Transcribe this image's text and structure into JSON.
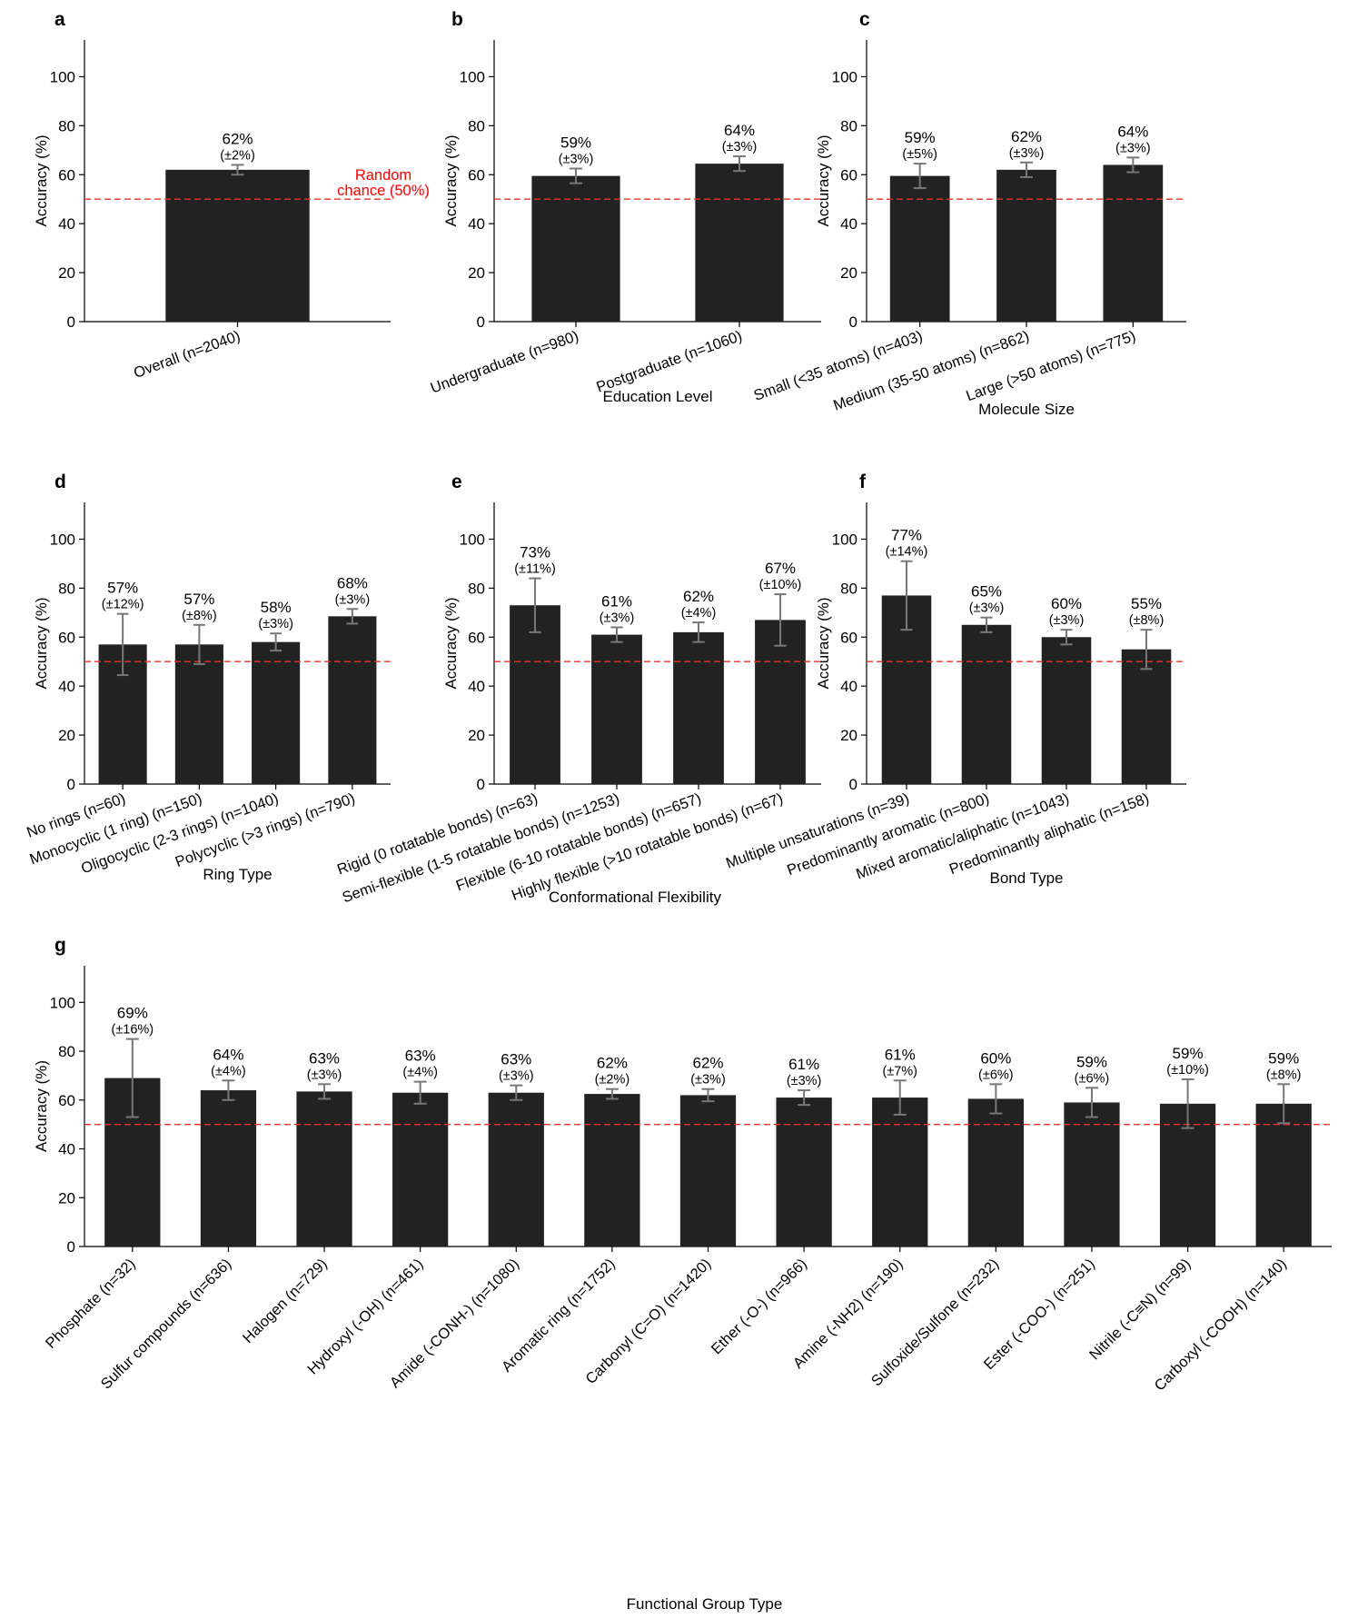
{
  "colors": {
    "bar": "#222222",
    "error": "#777777",
    "chance_line": "#e8312f",
    "chance_text": "#ff0000"
  },
  "chart_data": [
    {
      "panel": "a",
      "type": "bar",
      "title": "",
      "xlabel": "",
      "ylabel": "Accuracy (%)",
      "ylim": [
        0,
        115
      ],
      "yticks": [
        0,
        20,
        40,
        60,
        80,
        100
      ],
      "chance_level": 50,
      "chance_label": [
        "Random",
        "chance (50%)"
      ],
      "categories": [
        "Overall (n=2040)"
      ],
      "values": [
        62
      ],
      "errors": [
        2
      ],
      "labels": [
        "62%"
      ],
      "ci_labels": [
        "(±2%)"
      ]
    },
    {
      "panel": "b",
      "type": "bar",
      "title": "",
      "xlabel": "Education Level",
      "ylabel": "Accuracy (%)",
      "ylim": [
        0,
        115
      ],
      "yticks": [
        0,
        20,
        40,
        60,
        80,
        100
      ],
      "chance_level": 50,
      "categories": [
        "Undergraduate (n=980)",
        "Postgraduate (n=1060)"
      ],
      "values": [
        59.5,
        64.5
      ],
      "errors": [
        3,
        3
      ],
      "labels": [
        "59%",
        "64%"
      ],
      "ci_labels": [
        "(±3%)",
        "(±3%)"
      ]
    },
    {
      "panel": "c",
      "type": "bar",
      "title": "",
      "xlabel": "Molecule Size",
      "ylabel": "Accuracy (%)",
      "ylim": [
        0,
        115
      ],
      "yticks": [
        0,
        20,
        40,
        60,
        80,
        100
      ],
      "chance_level": 50,
      "categories": [
        "Small (<35 atoms) (n=403)",
        "Medium (35-50 atoms) (n=862)",
        "Large (>50 atoms) (n=775)"
      ],
      "values": [
        59.5,
        62,
        64
      ],
      "errors": [
        5,
        3,
        3
      ],
      "labels": [
        "59%",
        "62%",
        "64%"
      ],
      "ci_labels": [
        "(±5%)",
        "(±3%)",
        "(±3%)"
      ]
    },
    {
      "panel": "d",
      "type": "bar",
      "title": "",
      "xlabel": "Ring Type",
      "ylabel": "Accuracy (%)",
      "ylim": [
        0,
        115
      ],
      "yticks": [
        0,
        20,
        40,
        60,
        80,
        100
      ],
      "chance_level": 50,
      "categories": [
        "No rings (n=60)",
        "Monocyclic (1 ring) (n=150)",
        "Oligocyclic (2-3 rings) (n=1040)",
        "Polycyclic (>3 rings) (n=790)"
      ],
      "values": [
        57,
        57,
        58,
        68.5
      ],
      "errors": [
        12.5,
        8,
        3.5,
        3
      ],
      "labels": [
        "57%",
        "57%",
        "58%",
        "68%"
      ],
      "ci_labels": [
        "(±12%)",
        "(±8%)",
        "(±3%)",
        "(±3%)"
      ]
    },
    {
      "panel": "e",
      "type": "bar",
      "title": "",
      "xlabel": "Conformational Flexibility",
      "ylabel": "Accuracy (%)",
      "ylim": [
        0,
        115
      ],
      "yticks": [
        0,
        20,
        40,
        60,
        80,
        100
      ],
      "chance_level": 50,
      "categories": [
        "Rigid (0 rotatable bonds) (n=63)",
        "Semi-flexible (1-5 rotatable bonds) (n=1253)",
        "Flexible (6-10 rotatable bonds) (n=657)",
        "Highly flexible (>10 rotatable bonds) (n=67)"
      ],
      "values": [
        73,
        61,
        62,
        67
      ],
      "errors": [
        11,
        3,
        4,
        10.5
      ],
      "labels": [
        "73%",
        "61%",
        "62%",
        "67%"
      ],
      "ci_labels": [
        "(±11%)",
        "(±3%)",
        "(±4%)",
        "(±10%)"
      ]
    },
    {
      "panel": "f",
      "type": "bar",
      "title": "",
      "xlabel": "Bond Type",
      "ylabel": "Accuracy (%)",
      "ylim": [
        0,
        115
      ],
      "yticks": [
        0,
        20,
        40,
        60,
        80,
        100
      ],
      "chance_level": 50,
      "categories": [
        "Multiple unsaturations (n=39)",
        "Predominantly aromatic (n=800)",
        "Mixed aromatic/aliphatic (n=1043)",
        "Predominantly aliphatic (n=158)"
      ],
      "values": [
        77,
        65,
        60,
        55
      ],
      "errors": [
        14,
        3,
        3,
        8
      ],
      "labels": [
        "77%",
        "65%",
        "60%",
        "55%"
      ],
      "ci_labels": [
        "(±14%)",
        "(±3%)",
        "(±3%)",
        "(±8%)"
      ]
    },
    {
      "panel": "g",
      "type": "bar",
      "title": "",
      "xlabel": "Functional Group Type",
      "ylabel": "Accuracy (%)",
      "ylim": [
        0,
        115
      ],
      "yticks": [
        0,
        20,
        40,
        60,
        80,
        100
      ],
      "chance_level": 50,
      "categories": [
        "Phosphate (n=32)",
        "Sulfur compounds (n=636)",
        "Halogen (n=729)",
        "Hydroxyl (-OH) (n=461)",
        "Amide (-CONH-) (n=1080)",
        "Aromatic ring (n=1752)",
        "Carbonyl (C=O) (n=1420)",
        "Ether (-O-) (n=966)",
        "Amine (-NH2) (n=190)",
        "Sulfoxide/Sulfone (n=232)",
        "Ester (-COO-) (n=251)",
        "Nitrile (-C≡N) (n=99)",
        "Carboxyl (-COOH) (n=140)"
      ],
      "values": [
        69,
        64,
        63.5,
        63,
        63,
        62.5,
        62,
        61,
        61,
        60.5,
        59,
        58.5,
        58.5
      ],
      "errors": [
        16,
        4,
        3,
        4.5,
        3,
        2,
        2.5,
        3,
        7,
        6,
        6,
        10,
        8
      ],
      "labels": [
        "69%",
        "64%",
        "63%",
        "63%",
        "63%",
        "62%",
        "62%",
        "61%",
        "61%",
        "60%",
        "59%",
        "59%",
        "59%"
      ],
      "ci_labels": [
        "(±16%)",
        "(±4%)",
        "(±3%)",
        "(±4%)",
        "(±3%)",
        "(±2%)",
        "(±3%)",
        "(±3%)",
        "(±7%)",
        "(±6%)",
        "(±6%)",
        "(±10%)",
        "(±8%)"
      ]
    }
  ]
}
